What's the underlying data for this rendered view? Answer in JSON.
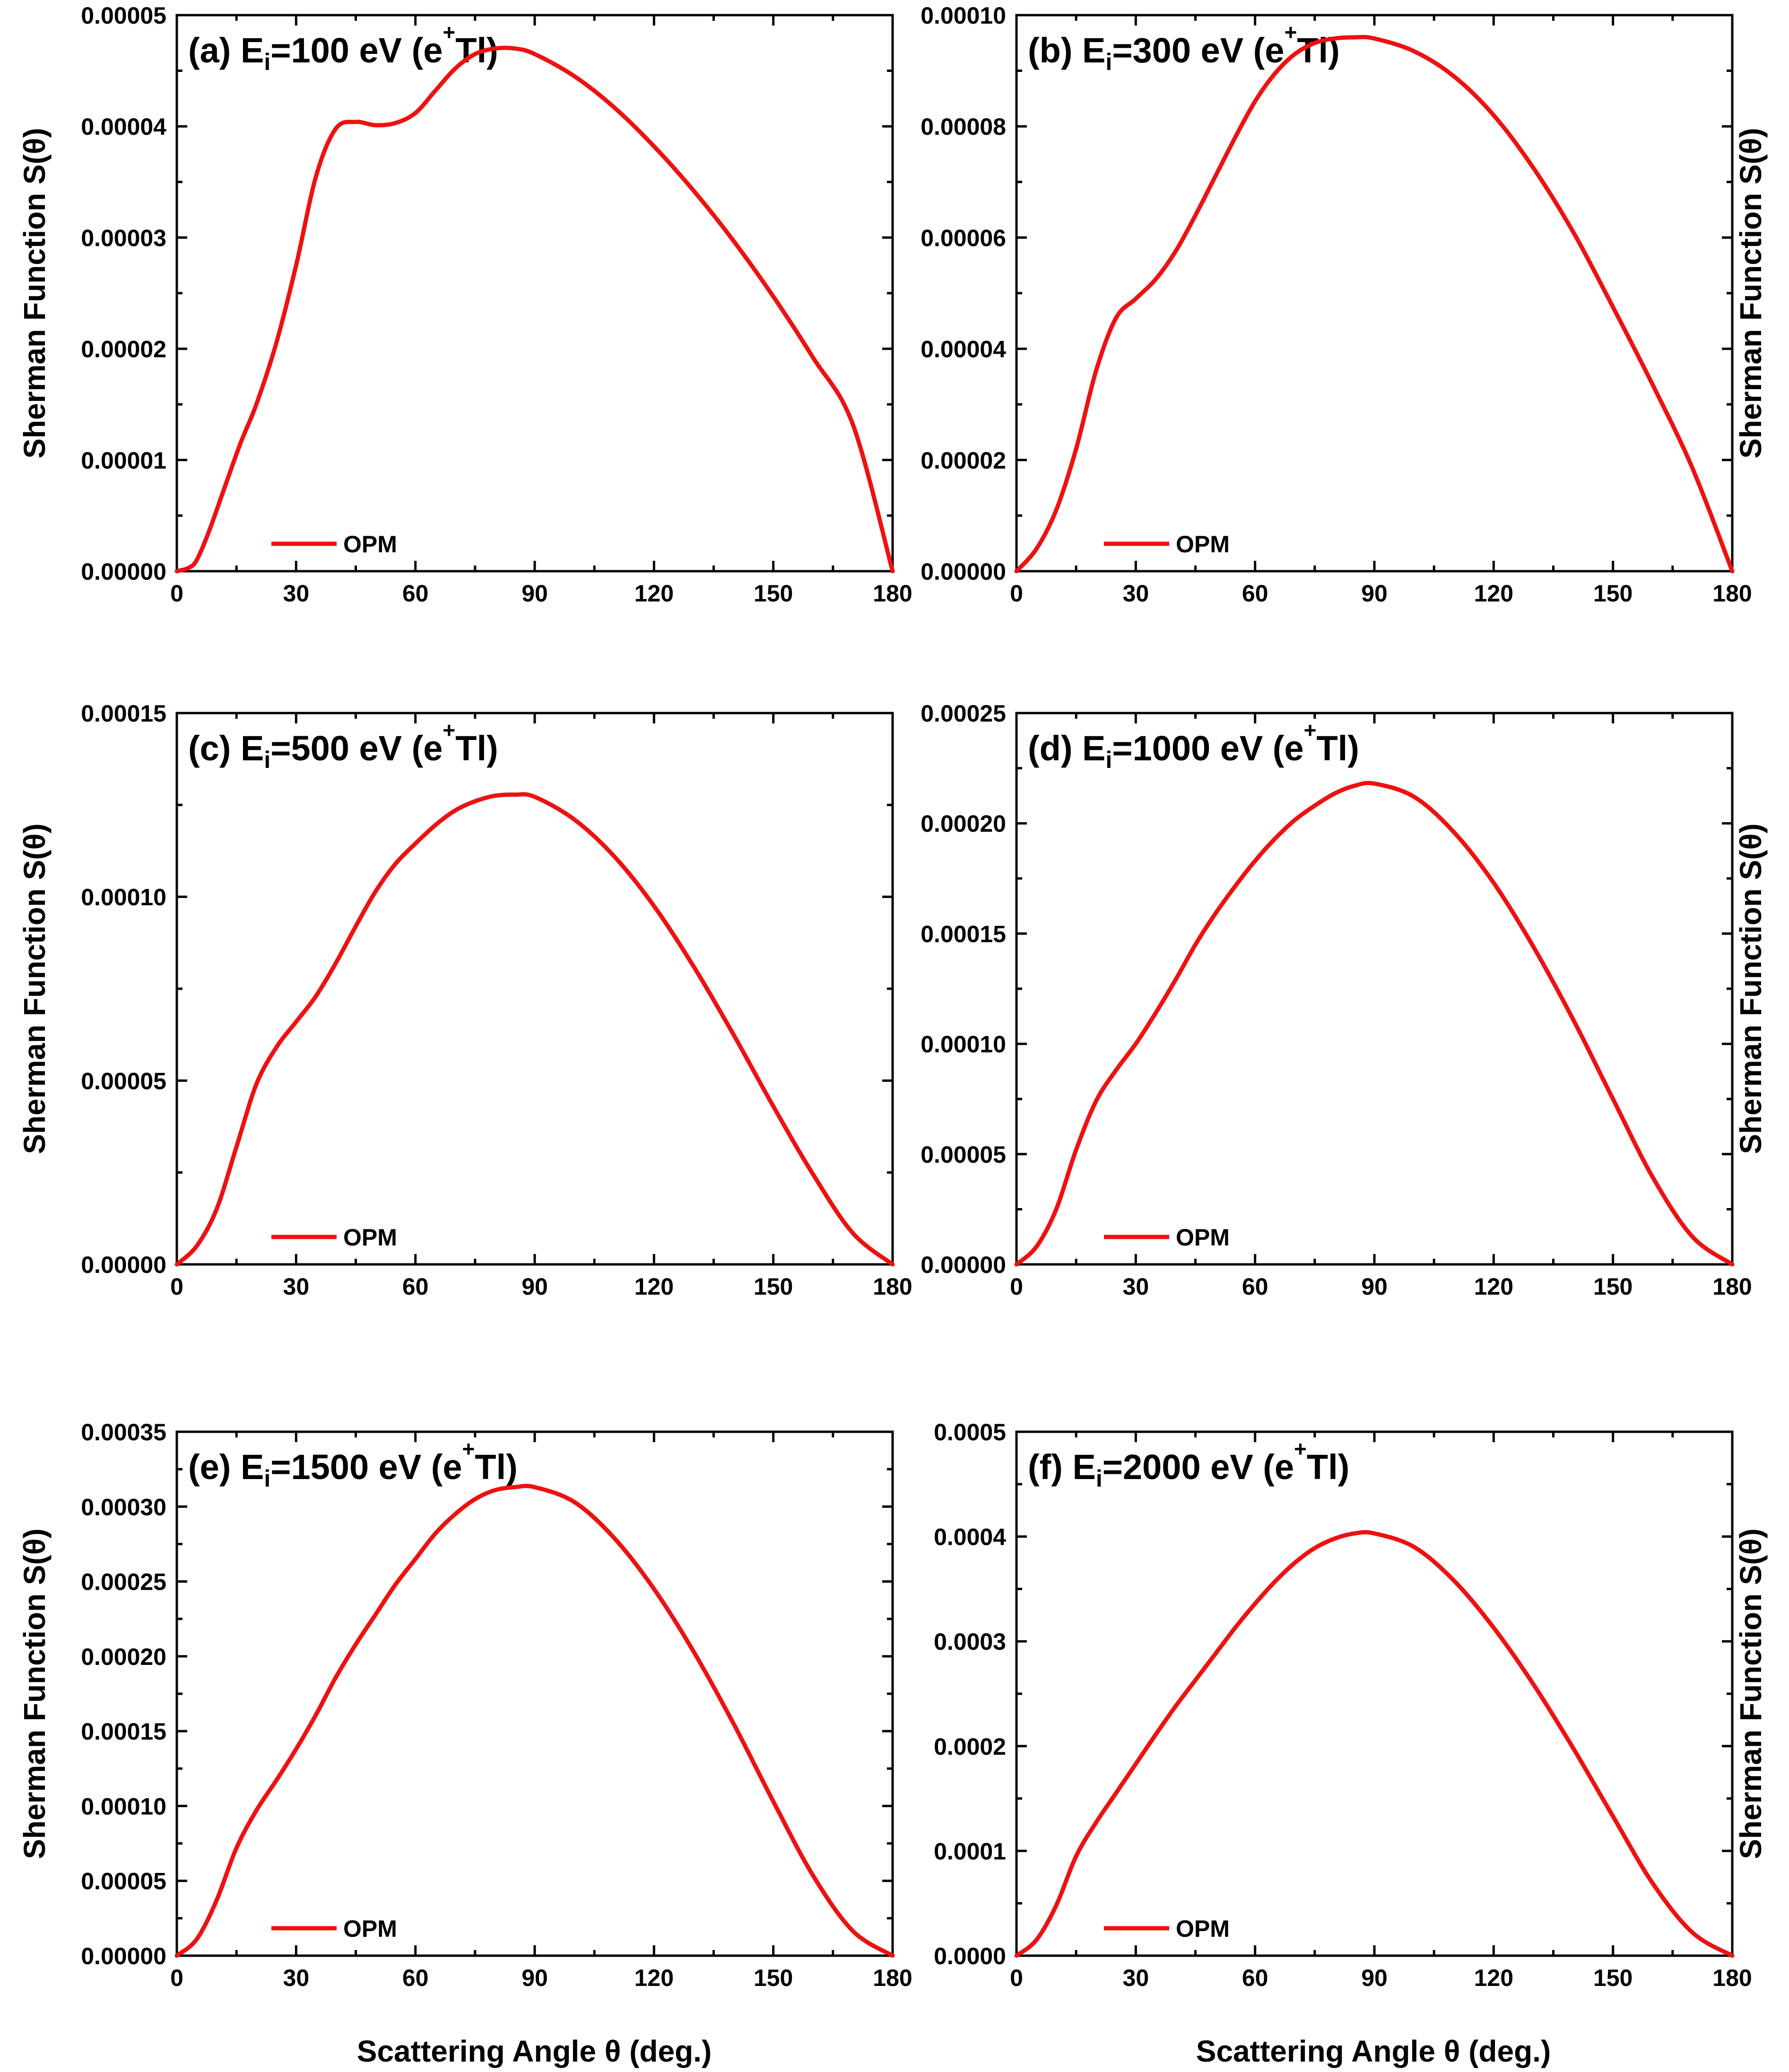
{
  "figure": {
    "shared_xlabel": "Scattering Angle θ (deg.)",
    "shared_ylabel": "Sherman Function S(θ)"
  },
  "colors": {
    "curve": "#ee1111",
    "axes": "#000000"
  },
  "chart_data": [
    {
      "id": "a",
      "type": "line",
      "title": {
        "prefix": "(a) E",
        "sub": "i",
        "mid": "=100 eV (e",
        "sup": "+",
        "suffix": "Tl)"
      },
      "xlabel": "",
      "ylabel": "Sherman Function S(θ)",
      "ylabel_side": "left",
      "xlim": [
        0,
        180
      ],
      "ylim": [
        0,
        5e-05
      ],
      "xticks": [
        "0",
        "30",
        "60",
        "90",
        "120",
        "150",
        "180"
      ],
      "yticks": [
        "0.00000",
        "0.00001",
        "0.00002",
        "0.00003",
        "0.00004",
        "0.00005"
      ],
      "legend": {
        "label": "OPM",
        "position": "bottom-left"
      },
      "series": [
        {
          "name": "OPM",
          "x": [
            0,
            3,
            5,
            8,
            12,
            16,
            20,
            25,
            30,
            35,
            40,
            45,
            50,
            55,
            60,
            65,
            70,
            75,
            80,
            85,
            90,
            100,
            110,
            120,
            130,
            140,
            150,
            160,
            170,
            180
          ],
          "y": [
            0,
            3e-07,
            1e-06,
            3.5e-06,
            7.5e-06,
            1.15e-05,
            1.5e-05,
            2.05e-05,
            2.75e-05,
            3.55e-05,
            3.98e-05,
            4.04e-05,
            4.01e-05,
            4.03e-05,
            4.12e-05,
            4.32e-05,
            4.52e-05,
            4.65e-05,
            4.7e-05,
            4.7e-05,
            4.65e-05,
            4.45e-05,
            4.17e-05,
            3.82e-05,
            3.42e-05,
            2.97e-05,
            2.47e-05,
            1.92e-05,
            1.32e-05,
            0
          ]
        }
      ]
    },
    {
      "id": "b",
      "type": "line",
      "title": {
        "prefix": "(b) E",
        "sub": "i",
        "mid": "=300 eV (e",
        "sup": "+",
        "suffix": "Tl)"
      },
      "xlabel": "",
      "ylabel": "Sherman Function S(θ)",
      "ylabel_side": "right",
      "xlim": [
        0,
        180
      ],
      "ylim": [
        0,
        0.0001
      ],
      "xticks": [
        "0",
        "30",
        "60",
        "90",
        "120",
        "150",
        "180"
      ],
      "yticks": [
        "0.00000",
        "0.00002",
        "0.00004",
        "0.00006",
        "0.00008",
        "0.00010"
      ],
      "legend": {
        "label": "OPM",
        "position": "bottom-center"
      },
      "series": [
        {
          "name": "OPM",
          "x": [
            0,
            5,
            10,
            15,
            20,
            25,
            30,
            35,
            40,
            45,
            50,
            55,
            60,
            65,
            70,
            75,
            80,
            85,
            90,
            100,
            110,
            120,
            130,
            140,
            150,
            160,
            170,
            180
          ],
          "y": [
            0,
            4e-06,
            1.1e-05,
            2.2e-05,
            3.6e-05,
            4.55e-05,
            4.9e-05,
            5.25e-05,
            5.75e-05,
            6.4e-05,
            7.1e-05,
            7.8e-05,
            8.45e-05,
            8.95e-05,
            9.3e-05,
            9.5e-05,
            9.58e-05,
            9.6e-05,
            9.58e-05,
            9.35e-05,
            8.9e-05,
            8.2e-05,
            7.25e-05,
            6.1e-05,
            4.75e-05,
            3.35e-05,
            1.85e-05,
            0
          ]
        }
      ]
    },
    {
      "id": "c",
      "type": "line",
      "title": {
        "prefix": "(c) E",
        "sub": "i",
        "mid": "=500 eV (e",
        "sup": "+",
        "suffix": "Tl)"
      },
      "xlabel": "",
      "ylabel": "Sherman Function S(θ)",
      "ylabel_side": "left",
      "xlim": [
        0,
        180
      ],
      "ylim": [
        0,
        0.00015
      ],
      "xticks": [
        "0",
        "30",
        "60",
        "90",
        "120",
        "150",
        "180"
      ],
      "yticks": [
        "0.00000",
        "0.00005",
        "0.00010",
        "0.00015"
      ],
      "legend": {
        "label": "OPM",
        "position": "bottom-left"
      },
      "series": [
        {
          "name": "OPM",
          "x": [
            0,
            5,
            10,
            15,
            20,
            25,
            30,
            35,
            40,
            45,
            50,
            55,
            60,
            65,
            70,
            75,
            80,
            85,
            90,
            100,
            110,
            120,
            130,
            140,
            150,
            160,
            170,
            180
          ],
          "y": [
            0,
            5e-06,
            1.5e-05,
            3.2e-05,
            4.9e-05,
            5.9e-05,
            6.6e-05,
            7.3e-05,
            8.2e-05,
            9.2e-05,
            0.0001015,
            0.000109,
            0.0001145,
            0.0001195,
            0.0001235,
            0.000126,
            0.0001275,
            0.0001278,
            0.0001272,
            0.000121,
            0.000111,
            9.75e-05,
            8.1e-05,
            6.25e-05,
            4.3e-05,
            2.45e-05,
            8.5e-06,
            0
          ]
        }
      ]
    },
    {
      "id": "d",
      "type": "line",
      "title": {
        "prefix": "(d) E",
        "sub": "i",
        "mid": "=1000 eV (e",
        "sup": "+",
        "suffix": "Tl)"
      },
      "xlabel": "",
      "ylabel": "Sherman Function S(θ)",
      "ylabel_side": "right",
      "xlim": [
        0,
        180
      ],
      "ylim": [
        0,
        0.00025
      ],
      "xticks": [
        "0",
        "30",
        "60",
        "90",
        "120",
        "150",
        "180"
      ],
      "yticks": [
        "0.00000",
        "0.00005",
        "0.00010",
        "0.00015",
        "0.00020",
        "0.00025"
      ],
      "legend": {
        "label": "OPM",
        "position": "bottom-center"
      },
      "series": [
        {
          "name": "OPM",
          "x": [
            0,
            5,
            10,
            15,
            20,
            25,
            30,
            35,
            40,
            45,
            50,
            55,
            60,
            65,
            70,
            75,
            80,
            85,
            90,
            100,
            110,
            120,
            130,
            140,
            150,
            160,
            170,
            180
          ],
          "y": [
            0,
            8e-06,
            2.5e-05,
            5.2e-05,
            7.4e-05,
            8.8e-05,
            0.0001,
            0.000114,
            0.000129,
            0.000145,
            0.000159,
            0.0001715,
            0.000183,
            0.000193,
            0.0002015,
            0.000208,
            0.0002135,
            0.000217,
            0.000218,
            0.000212,
            0.000196,
            0.000173,
            0.000144,
            0.000111,
            7.5e-05,
            3.95e-05,
            1.25e-05,
            0
          ]
        }
      ]
    },
    {
      "id": "e",
      "type": "line",
      "title": {
        "prefix": "(e) E",
        "sub": "i",
        "mid": "=1500 eV (e",
        "sup": "+",
        "suffix": "Tl)"
      },
      "xlabel": "Scattering Angle θ (deg.)",
      "ylabel": "Sherman Function S(θ)",
      "ylabel_side": "left",
      "xlim": [
        0,
        180
      ],
      "ylim": [
        0,
        0.00035
      ],
      "xticks": [
        "0",
        "30",
        "60",
        "90",
        "120",
        "150",
        "180"
      ],
      "yticks": [
        "0.00000",
        "0.00005",
        "0.00010",
        "0.00015",
        "0.00020",
        "0.00025",
        "0.00030",
        "0.00035"
      ],
      "legend": {
        "label": "OPM",
        "position": "bottom-left"
      },
      "series": [
        {
          "name": "OPM",
          "x": [
            0,
            5,
            10,
            15,
            20,
            25,
            30,
            35,
            40,
            45,
            50,
            55,
            60,
            65,
            70,
            75,
            80,
            85,
            90,
            100,
            110,
            120,
            130,
            140,
            150,
            160,
            170,
            180
          ],
          "y": [
            0,
            1.1e-05,
            3.7e-05,
            7.2e-05,
            9.7e-05,
            0.000117,
            0.000138,
            0.000161,
            0.000186,
            0.000208,
            0.000228,
            0.000248,
            0.000265,
            0.000282,
            0.000295,
            0.000305,
            0.000311,
            0.000313,
            0.000313,
            0.000303,
            0.000279,
            0.000245,
            0.000203,
            0.000155,
            0.000103,
            5.35e-05,
            1.65e-05,
            0
          ]
        }
      ]
    },
    {
      "id": "f",
      "type": "line",
      "title": {
        "prefix": "(f) E",
        "sub": "i",
        "mid": "=2000 eV (e",
        "sup": "+",
        "suffix": "Tl)"
      },
      "xlabel": "Scattering Angle θ (deg.)",
      "ylabel": "Sherman Function S(θ)",
      "ylabel_side": "right",
      "xlim": [
        0,
        180
      ],
      "ylim": [
        0,
        0.0005
      ],
      "xticks": [
        "0",
        "30",
        "60",
        "90",
        "120",
        "150",
        "180"
      ],
      "yticks": [
        "0.0000",
        "0.0001",
        "0.0002",
        "0.0003",
        "0.0004",
        "0.0005"
      ],
      "legend": {
        "label": "OPM",
        "position": "bottom-center"
      },
      "series": [
        {
          "name": "OPM",
          "x": [
            0,
            5,
            10,
            15,
            20,
            25,
            30,
            35,
            40,
            45,
            50,
            55,
            60,
            65,
            70,
            75,
            80,
            85,
            90,
            100,
            110,
            120,
            130,
            140,
            150,
            160,
            170,
            180
          ],
          "y": [
            0,
            1.5e-05,
            4.8e-05,
            9.5e-05,
            0.000127,
            0.000155,
            0.000183,
            0.000211,
            0.000238,
            0.000263,
            0.000288,
            0.000313,
            0.000336,
            0.000357,
            0.000375,
            0.000389,
            0.000398,
            0.000403,
            0.000403,
            0.00039,
            0.000358,
            0.000313,
            0.000259,
            0.000198,
            0.000133,
            6.9e-05,
            2.2e-05,
            0
          ]
        }
      ]
    }
  ]
}
